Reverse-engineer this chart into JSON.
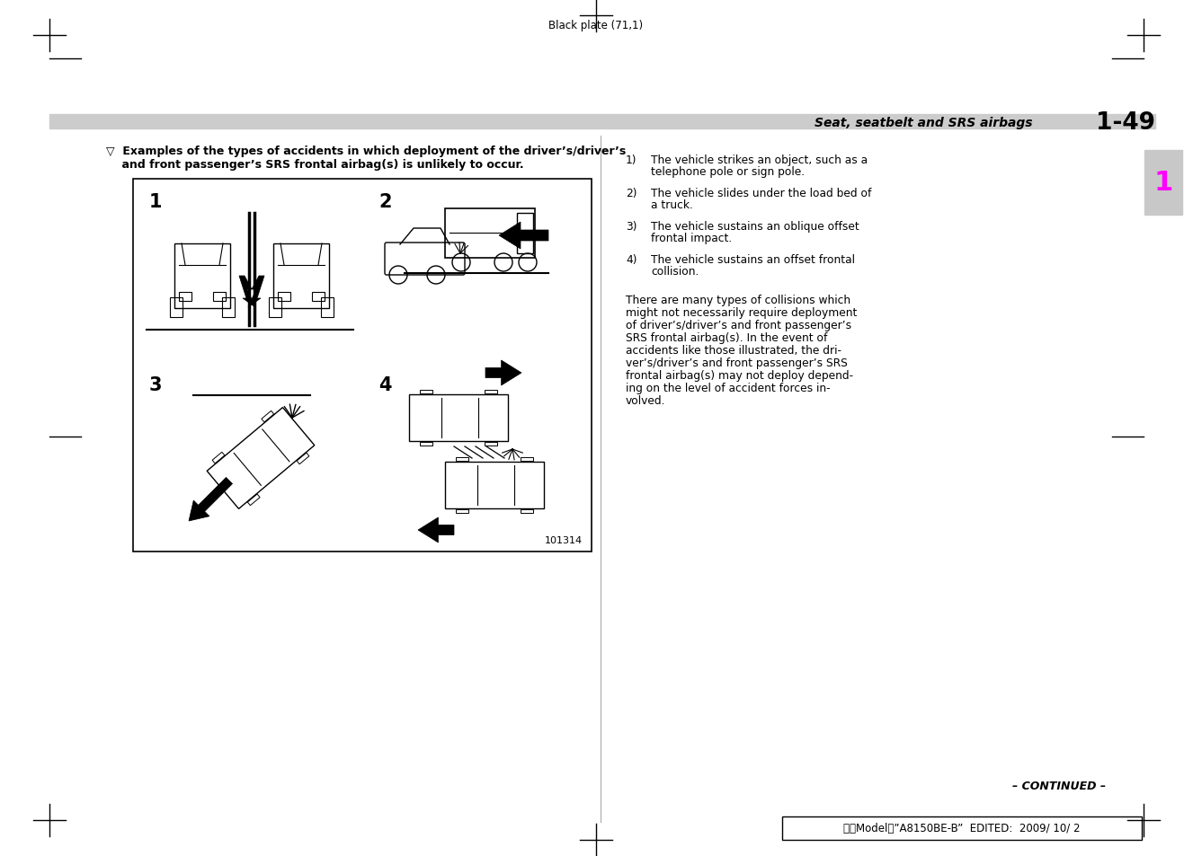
{
  "page_title": "Seat, seatbelt and SRS airbags",
  "page_number": "1-49",
  "header_top_text": "Black plate (71,1)",
  "section_header_line1": "▽  Examples of the types of accidents in which deployment of the driver’s/driver’s",
  "section_header_line2": "    and front passenger’s SRS frontal airbag(s) is unlikely to occur.",
  "numbered_list": [
    [
      "The vehicle strikes an object, such as a",
      "telephone pole or sign pole."
    ],
    [
      "The vehicle slides under the load bed of",
      "a truck."
    ],
    [
      "The vehicle sustains an oblique offset",
      "frontal impact."
    ],
    [
      "The vehicle sustains an offset frontal",
      "collision."
    ]
  ],
  "body_paragraph_lines": [
    "There are many types of collisions which",
    "might not necessarily require deployment",
    "of driver’s/driver’s and front passenger’s",
    "SRS frontal airbag(s). In the event of",
    "accidents like those illustrated, the dri-",
    "ver’s/driver’s and front passenger’s SRS",
    "frontal airbag(s) may not deploy depend-",
    "ing on the level of accident forces in-",
    "volved."
  ],
  "diagram_label": "101314",
  "continued_text": "– CONTINUED –",
  "footer_text": "北米Model！”A8150BE-B”  EDITED:  2009/ 10/ 2",
  "bg_color": "#ffffff",
  "gray_bar_color": "#cccccc",
  "side_tab_color": "#c8c8c8",
  "side_tab_number": "1",
  "side_tab_number_color": "#ff00ff"
}
